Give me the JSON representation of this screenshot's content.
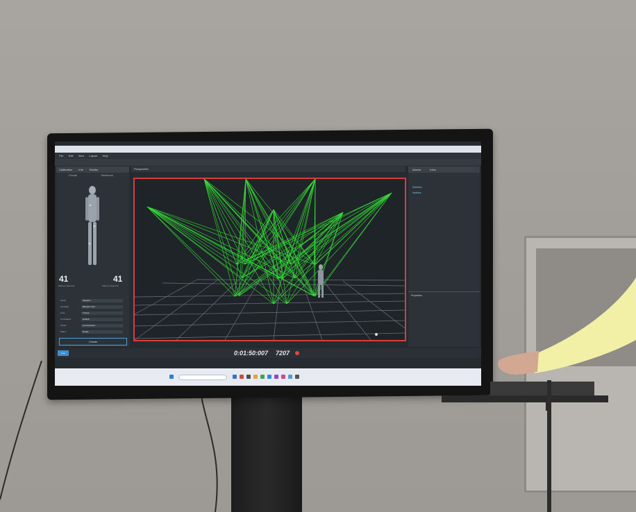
{
  "scene": {
    "description_colors": {
      "wall": "#a8a49f",
      "monitor_bezel": "#141414",
      "viewport_border": "#e03a3a",
      "ray_color": "#39ff3a",
      "sleeve_color": "#f1f0a6"
    }
  },
  "app": {
    "menu": [
      "File",
      "Edit",
      "View",
      "Layout",
      "Help"
    ],
    "left_panel": {
      "tabs": [
        "Calibration",
        "Info",
        "Builder"
      ],
      "subtabs": [
        "Create",
        "Skeletons"
      ],
      "markers_detected": "41",
      "markers_required": "41",
      "markers_detected_label": "Markers Detected",
      "markers_required_label": "Markers Required",
      "properties": [
        {
          "label": "Name",
          "value": "Skeleton"
        },
        {
          "label": "Template",
          "value": "Baseline (41)"
        },
        {
          "label": "Pose",
          "value": "T-Pose"
        },
        {
          "label": "Constraints",
          "value": "Default"
        },
        {
          "label": "Visual",
          "value": "Conventional"
        },
        {
          "label": "Status",
          "value": "Ready"
        }
      ],
      "create_label": "Create"
    },
    "viewport": {
      "label": "Perspective"
    },
    "right_panel": {
      "tabs": [
        "Assets",
        "Infos"
      ],
      "items": [
        "Skeleton",
        "Markers"
      ],
      "bottom_label": "Properties"
    },
    "timeline": {
      "live_label": "Live",
      "timecode": "0:01:50:007",
      "frame": "7207"
    },
    "icons": [
      "windows-start-icon",
      "search-icon",
      "record-icon",
      "body-figure-icon"
    ]
  }
}
